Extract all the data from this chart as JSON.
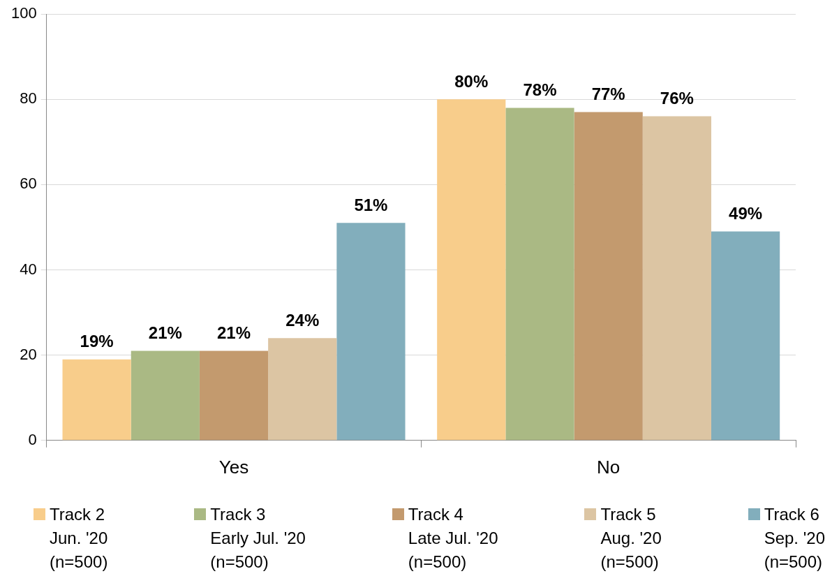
{
  "chart_data": {
    "type": "bar",
    "categories": [
      "Yes",
      "No"
    ],
    "series": [
      {
        "name": "Track 2\nJun. '20\n(n=500)",
        "color": "#f8cd8b",
        "values": [
          19,
          80
        ],
        "value_labels": [
          "19%",
          "80%"
        ]
      },
      {
        "name": "Track 3\nEarly Jul. '20\n(n=500)",
        "color": "#aab984",
        "values": [
          21,
          78
        ],
        "value_labels": [
          "21%",
          "78%"
        ]
      },
      {
        "name": "Track 4\nLate Jul. '20\n(n=500)",
        "color": "#c39a6e",
        "values": [
          21,
          77
        ],
        "value_labels": [
          "21%",
          "77%"
        ]
      },
      {
        "name": "Track 5\nAug. '20\n(n=500)",
        "color": "#dcc5a3",
        "values": [
          24,
          76
        ],
        "value_labels": [
          "24%",
          "76%"
        ]
      },
      {
        "name": "Track 6\nSep. '20\n(n=500)",
        "color": "#82aebc",
        "values": [
          51,
          49
        ],
        "value_labels": [
          "51%",
          "49%"
        ]
      }
    ],
    "ylim": [
      0,
      100
    ],
    "yticks": [
      0,
      20,
      40,
      60,
      80,
      100
    ],
    "grid": "y",
    "legend": "bottom"
  }
}
